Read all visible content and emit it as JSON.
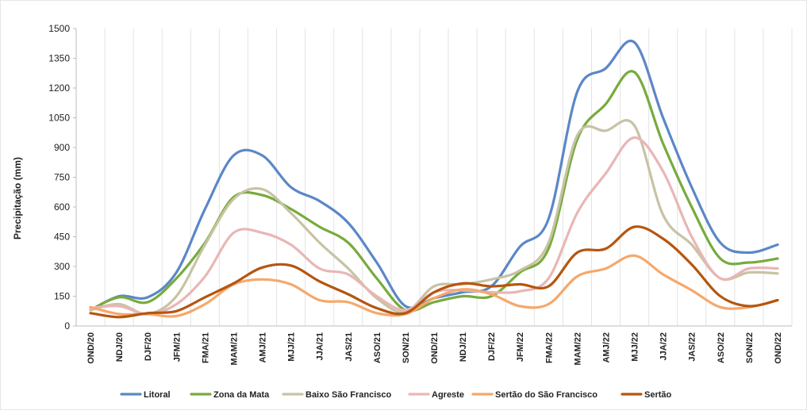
{
  "chart_data": {
    "type": "line",
    "title": "",
    "xlabel": "",
    "ylabel": "Precipitação (mm)",
    "ylim": [
      0,
      1500
    ],
    "yticks": [
      0,
      150,
      300,
      450,
      600,
      750,
      900,
      1050,
      1200,
      1350,
      1500
    ],
    "grid": "vertical",
    "legend_position": "bottom",
    "categories": [
      "OND/20",
      "NDJ/20",
      "DJF/20",
      "JFM/21",
      "FMA/21",
      "MAM/21",
      "AMJ/21",
      "MJJ/21",
      "JJA/21",
      "JAS/21",
      "ASO/21",
      "SON/21",
      "OND/21",
      "NDJ/21",
      "DJF/22",
      "JFM/22",
      "FMA/22",
      "MAM/22",
      "AMJ/22",
      "MJJ/22",
      "JJA/22",
      "JAS/22",
      "ASO/22",
      "SON/22",
      "OND/22"
    ],
    "series": [
      {
        "name": "Litoral",
        "color": "#5b87c7",
        "values": [
          80,
          150,
          145,
          270,
          590,
          860,
          860,
          700,
          630,
          520,
          320,
          100,
          140,
          170,
          200,
          400,
          540,
          1180,
          1300,
          1430,
          1050,
          700,
          420,
          370,
          410
        ]
      },
      {
        "name": "Zona da Mata",
        "color": "#77ab3d",
        "values": [
          80,
          145,
          120,
          240,
          420,
          650,
          660,
          590,
          500,
          420,
          240,
          80,
          120,
          150,
          150,
          270,
          390,
          940,
          1120,
          1280,
          920,
          600,
          340,
          320,
          340
        ]
      },
      {
        "name": "Baixo São Francisco",
        "color": "#c7c3a4",
        "values": [
          80,
          110,
          60,
          150,
          410,
          640,
          690,
          570,
          420,
          290,
          140,
          70,
          200,
          210,
          235,
          280,
          420,
          960,
          985,
          1010,
          560,
          410,
          240,
          270,
          265
        ]
      },
      {
        "name": "Agreste",
        "color": "#e9b6b6",
        "values": [
          90,
          100,
          60,
          110,
          250,
          470,
          470,
          410,
          290,
          260,
          150,
          80,
          170,
          180,
          170,
          175,
          240,
          570,
          770,
          950,
          780,
          450,
          240,
          290,
          290
        ]
      },
      {
        "name": "Sertão do São Francisco",
        "color": "#f5a86b",
        "values": [
          95,
          60,
          60,
          50,
          110,
          210,
          235,
          210,
          130,
          120,
          65,
          60,
          140,
          185,
          160,
          100,
          110,
          250,
          290,
          355,
          260,
          180,
          95,
          95,
          130
        ]
      },
      {
        "name": "Sertão",
        "color": "#b5560f",
        "values": [
          65,
          45,
          65,
          75,
          145,
          215,
          295,
          305,
          225,
          160,
          90,
          65,
          170,
          215,
          200,
          210,
          200,
          370,
          390,
          500,
          440,
          310,
          150,
          100,
          130
        ]
      }
    ]
  }
}
